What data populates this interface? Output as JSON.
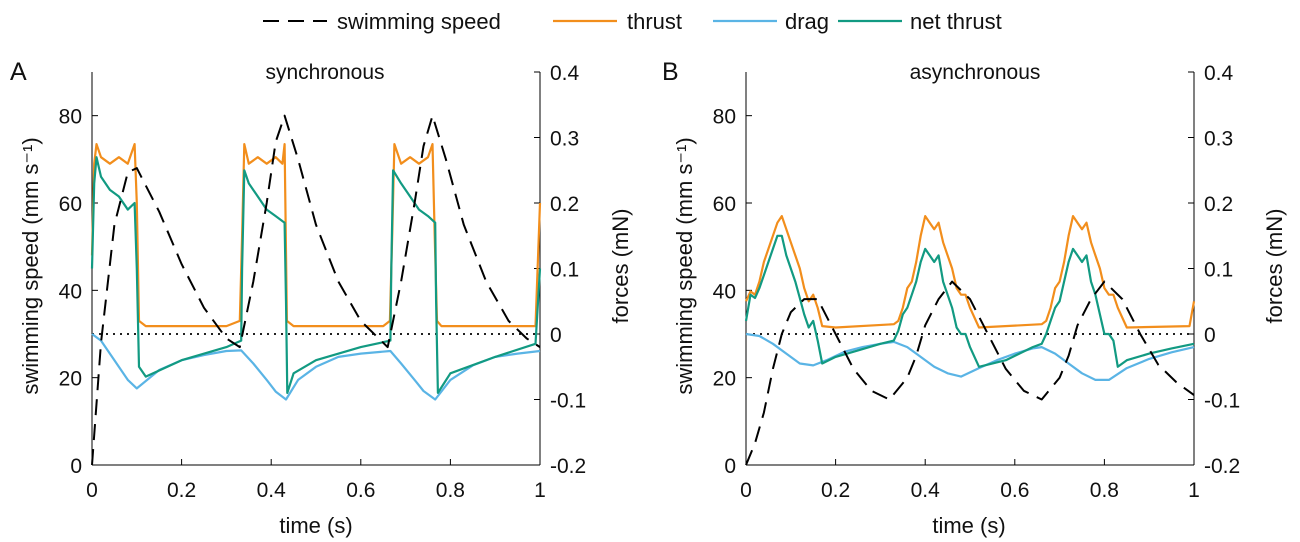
{
  "legend": {
    "position": "top-center",
    "items": [
      {
        "key": "speed",
        "label": "swimming speed",
        "color": "#000000",
        "style": "dashed"
      },
      {
        "key": "thrust",
        "label": "thrust",
        "color": "#F28E1C",
        "style": "solid"
      },
      {
        "key": "drag",
        "label": "drag",
        "color": "#5AB4E5",
        "style": "solid"
      },
      {
        "key": "net",
        "label": "net thrust",
        "color": "#129A82",
        "style": "solid"
      }
    ]
  },
  "panels": [
    {
      "letter": "A",
      "title": "synchronous",
      "xlabel": "time (s)",
      "ylabel_left": "swimming speed (mm s⁻¹)",
      "ylabel_right": "forces (mN)"
    },
    {
      "letter": "B",
      "title": "asynchronous",
      "xlabel": "time (s)",
      "ylabel_left": "swimming speed (mm s⁻¹)",
      "ylabel_right": "forces (mN)"
    }
  ],
  "chart_data": [
    {
      "type": "line",
      "title": "synchronous",
      "xlabel": "time (s)",
      "ylabel": "swimming speed (mm s⁻¹)",
      "y2label": "forces (mN)",
      "xlim": [
        0,
        1
      ],
      "ylim": [
        0,
        90
      ],
      "y2lim": [
        -0.2,
        0.4
      ],
      "xticks": [
        "0",
        "0.2",
        "0.4",
        "0.6",
        "0.8",
        "1"
      ],
      "yticks": [
        "0",
        "20",
        "40",
        "60",
        "80"
      ],
      "y2ticks": [
        "-0.2",
        "-0.1",
        "0",
        "0.1",
        "0.2",
        "0.3",
        "0.4"
      ],
      "reference_line": {
        "axis": "y2",
        "value": 0,
        "style": "dotted"
      },
      "series": [
        {
          "name": "swimming speed",
          "axis": "y",
          "x": [
            0,
            0.02,
            0.05,
            0.08,
            0.1,
            0.15,
            0.2,
            0.25,
            0.3,
            0.33,
            0.36,
            0.39,
            0.41,
            0.43,
            0.46,
            0.5,
            0.55,
            0.6,
            0.64,
            0.66,
            0.69,
            0.72,
            0.74,
            0.76,
            0.79,
            0.83,
            0.88,
            0.93,
            0.97,
            1.0
          ],
          "y": [
            0,
            28,
            55,
            67,
            68,
            58,
            46,
            36,
            29,
            27,
            42,
            60,
            74,
            80,
            70,
            55,
            42,
            33,
            29,
            27,
            42,
            60,
            73,
            80,
            70,
            55,
            42,
            33,
            29,
            27
          ]
        },
        {
          "name": "thrust",
          "axis": "y2",
          "x": [
            0,
            0.005,
            0.01,
            0.02,
            0.04,
            0.06,
            0.08,
            0.095,
            0.1,
            0.105,
            0.12,
            0.2,
            0.3,
            0.33,
            0.335,
            0.34,
            0.35,
            0.37,
            0.39,
            0.41,
            0.425,
            0.43,
            0.435,
            0.45,
            0.55,
            0.65,
            0.665,
            0.67,
            0.675,
            0.69,
            0.71,
            0.73,
            0.75,
            0.76,
            0.765,
            0.77,
            0.78,
            0.9,
            0.99,
            1.0
          ],
          "y": [
            0.12,
            0.26,
            0.29,
            0.27,
            0.26,
            0.27,
            0.26,
            0.29,
            0.2,
            0.02,
            0.012,
            0.012,
            0.012,
            0.02,
            0.15,
            0.29,
            0.26,
            0.27,
            0.26,
            0.27,
            0.26,
            0.29,
            0.02,
            0.012,
            0.012,
            0.012,
            0.02,
            0.15,
            0.29,
            0.26,
            0.27,
            0.26,
            0.27,
            0.29,
            0.15,
            0.02,
            0.012,
            0.012,
            0.012,
            0.2
          ]
        },
        {
          "name": "drag",
          "axis": "y2",
          "x": [
            0,
            0.02,
            0.05,
            0.08,
            0.1,
            0.15,
            0.2,
            0.25,
            0.3,
            0.333,
            0.36,
            0.39,
            0.41,
            0.433,
            0.46,
            0.5,
            0.55,
            0.6,
            0.666,
            0.69,
            0.72,
            0.74,
            0.766,
            0.8,
            0.85,
            0.9,
            0.95,
            1.0
          ],
          "y": [
            0,
            -0.01,
            -0.04,
            -0.07,
            -0.083,
            -0.055,
            -0.04,
            -0.032,
            -0.026,
            -0.025,
            -0.045,
            -0.07,
            -0.088,
            -0.1,
            -0.07,
            -0.05,
            -0.035,
            -0.03,
            -0.026,
            -0.045,
            -0.07,
            -0.087,
            -0.1,
            -0.07,
            -0.048,
            -0.035,
            -0.03,
            -0.026
          ]
        },
        {
          "name": "net thrust",
          "axis": "y2",
          "x": [
            0,
            0.005,
            0.01,
            0.02,
            0.04,
            0.06,
            0.08,
            0.095,
            0.1,
            0.105,
            0.12,
            0.2,
            0.3,
            0.333,
            0.335,
            0.34,
            0.35,
            0.37,
            0.39,
            0.41,
            0.43,
            0.433,
            0.436,
            0.45,
            0.5,
            0.6,
            0.666,
            0.668,
            0.672,
            0.69,
            0.71,
            0.73,
            0.75,
            0.766,
            0.768,
            0.772,
            0.8,
            0.9,
            0.99,
            1.0
          ],
          "y": [
            0.1,
            0.23,
            0.27,
            0.24,
            0.22,
            0.21,
            0.19,
            0.2,
            0.1,
            -0.05,
            -0.065,
            -0.04,
            -0.02,
            -0.01,
            0.1,
            0.25,
            0.23,
            0.21,
            0.19,
            0.18,
            0.17,
            0.05,
            -0.09,
            -0.06,
            -0.04,
            -0.02,
            -0.01,
            0.1,
            0.25,
            0.23,
            0.21,
            0.19,
            0.18,
            0.17,
            0.05,
            -0.09,
            -0.06,
            -0.035,
            -0.015,
            0.1
          ]
        }
      ]
    },
    {
      "type": "line",
      "title": "asynchronous",
      "xlabel": "time (s)",
      "ylabel": "swimming speed (mm s⁻¹)",
      "y2label": "forces (mN)",
      "xlim": [
        0,
        1
      ],
      "ylim": [
        0,
        90
      ],
      "y2lim": [
        -0.2,
        0.4
      ],
      "xticks": [
        "0",
        "0.2",
        "0.4",
        "0.6",
        "0.8",
        "1"
      ],
      "yticks": [
        "0",
        "20",
        "40",
        "60",
        "80"
      ],
      "y2ticks": [
        "-0.2",
        "-0.1",
        "0",
        "0.1",
        "0.2",
        "0.3",
        "0.4"
      ],
      "reference_line": {
        "axis": "y2",
        "value": 0,
        "style": "dotted"
      },
      "series": [
        {
          "name": "swimming speed",
          "axis": "y",
          "x": [
            0,
            0.02,
            0.04,
            0.06,
            0.08,
            0.1,
            0.13,
            0.16,
            0.2,
            0.24,
            0.28,
            0.32,
            0.36,
            0.38,
            0.4,
            0.43,
            0.46,
            0.5,
            0.54,
            0.58,
            0.62,
            0.66,
            0.7,
            0.72,
            0.74,
            0.77,
            0.8,
            0.84,
            0.88,
            0.92,
            0.96,
            1.0
          ],
          "y": [
            0,
            5,
            12,
            22,
            30,
            35,
            38,
            38,
            30,
            22,
            17,
            15,
            20,
            25,
            32,
            38,
            42,
            38,
            30,
            22,
            17,
            15,
            20,
            25,
            32,
            38,
            42,
            38,
            30,
            23,
            19,
            16
          ]
        },
        {
          "name": "thrust",
          "axis": "y2",
          "x": [
            0,
            0.01,
            0.02,
            0.03,
            0.04,
            0.05,
            0.06,
            0.07,
            0.08,
            0.09,
            0.1,
            0.11,
            0.12,
            0.13,
            0.14,
            0.15,
            0.16,
            0.17,
            0.2,
            0.33,
            0.34,
            0.35,
            0.36,
            0.37,
            0.38,
            0.39,
            0.4,
            0.41,
            0.42,
            0.43,
            0.44,
            0.45,
            0.46,
            0.47,
            0.48,
            0.49,
            0.5,
            0.52,
            0.66,
            0.67,
            0.68,
            0.69,
            0.7,
            0.71,
            0.72,
            0.73,
            0.74,
            0.75,
            0.76,
            0.77,
            0.78,
            0.79,
            0.8,
            0.81,
            0.82,
            0.83,
            0.85,
            0.99,
            1.0
          ],
          "y": [
            0.05,
            0.065,
            0.06,
            0.08,
            0.11,
            0.13,
            0.15,
            0.17,
            0.18,
            0.16,
            0.14,
            0.12,
            0.1,
            0.07,
            0.05,
            0.06,
            0.04,
            0.012,
            0.01,
            0.015,
            0.02,
            0.04,
            0.07,
            0.08,
            0.11,
            0.15,
            0.18,
            0.17,
            0.16,
            0.17,
            0.14,
            0.12,
            0.1,
            0.07,
            0.06,
            0.06,
            0.04,
            0.01,
            0.015,
            0.02,
            0.04,
            0.07,
            0.08,
            0.11,
            0.15,
            0.18,
            0.17,
            0.16,
            0.17,
            0.14,
            0.12,
            0.1,
            0.07,
            0.06,
            0.06,
            0.04,
            0.01,
            0.012,
            0.05
          ]
        },
        {
          "name": "drag",
          "axis": "y2",
          "x": [
            0,
            0.03,
            0.06,
            0.09,
            0.12,
            0.15,
            0.18,
            0.22,
            0.26,
            0.3,
            0.33,
            0.36,
            0.39,
            0.42,
            0.45,
            0.48,
            0.52,
            0.56,
            0.6,
            0.64,
            0.66,
            0.69,
            0.72,
            0.75,
            0.78,
            0.81,
            0.85,
            0.9,
            0.95,
            1.0
          ],
          "y": [
            0,
            -0.003,
            -0.015,
            -0.03,
            -0.045,
            -0.048,
            -0.04,
            -0.027,
            -0.02,
            -0.015,
            -0.012,
            -0.02,
            -0.035,
            -0.05,
            -0.06,
            -0.065,
            -0.052,
            -0.04,
            -0.03,
            -0.022,
            -0.02,
            -0.03,
            -0.045,
            -0.06,
            -0.07,
            -0.07,
            -0.052,
            -0.038,
            -0.028,
            -0.02
          ]
        },
        {
          "name": "net thrust",
          "axis": "y2",
          "x": [
            0,
            0.01,
            0.02,
            0.03,
            0.04,
            0.05,
            0.06,
            0.07,
            0.08,
            0.09,
            0.1,
            0.11,
            0.12,
            0.13,
            0.14,
            0.15,
            0.16,
            0.17,
            0.2,
            0.25,
            0.3,
            0.33,
            0.34,
            0.35,
            0.36,
            0.37,
            0.38,
            0.39,
            0.4,
            0.41,
            0.42,
            0.43,
            0.44,
            0.45,
            0.46,
            0.47,
            0.48,
            0.49,
            0.5,
            0.52,
            0.58,
            0.64,
            0.66,
            0.67,
            0.68,
            0.69,
            0.7,
            0.71,
            0.72,
            0.73,
            0.74,
            0.75,
            0.76,
            0.77,
            0.78,
            0.79,
            0.8,
            0.81,
            0.82,
            0.83,
            0.85,
            0.9,
            0.95,
            1.0
          ],
          "y": [
            0.02,
            0.06,
            0.055,
            0.07,
            0.09,
            0.11,
            0.13,
            0.15,
            0.15,
            0.12,
            0.1,
            0.08,
            0.055,
            0.03,
            0.01,
            0.02,
            -0.01,
            -0.045,
            -0.035,
            -0.025,
            -0.015,
            -0.01,
            0.005,
            0.03,
            0.04,
            0.06,
            0.08,
            0.11,
            0.13,
            0.12,
            0.11,
            0.12,
            0.08,
            0.06,
            0.04,
            0.01,
            0.0,
            0.0,
            -0.02,
            -0.05,
            -0.04,
            -0.02,
            -0.015,
            0.0,
            0.02,
            0.04,
            0.05,
            0.08,
            0.11,
            0.13,
            0.12,
            0.11,
            0.12,
            0.08,
            0.06,
            0.03,
            0.0,
            0.0,
            -0.01,
            -0.05,
            -0.04,
            -0.03,
            -0.022,
            -0.015
          ]
        }
      ]
    }
  ]
}
